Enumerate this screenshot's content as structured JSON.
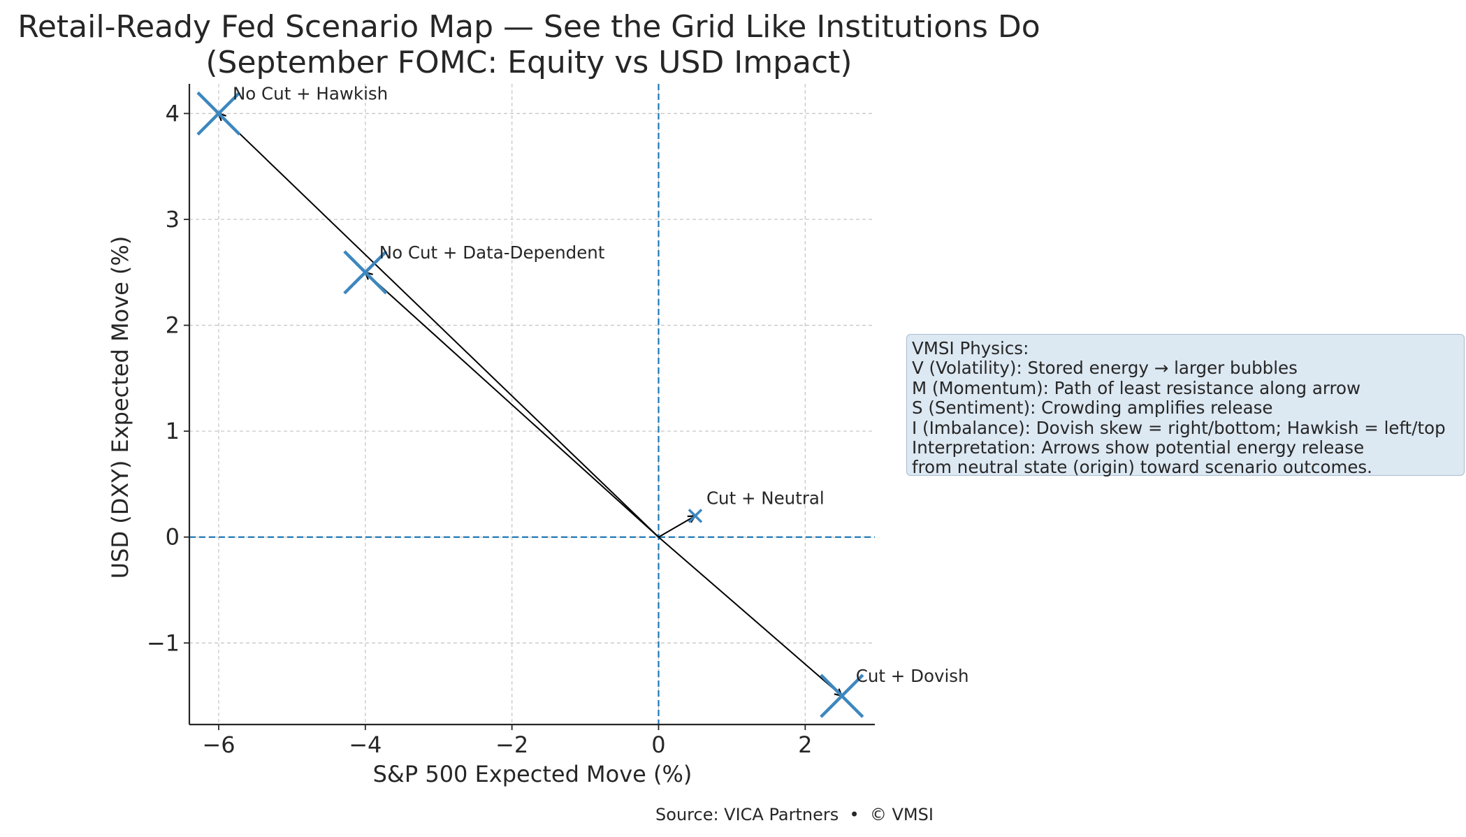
{
  "chart_data": {
    "type": "scatter",
    "title": [
      "Retail-Ready Fed Scenario Map — See the Grid Like Institutions Do",
      "(September FOMC: Equity vs USD Impact)"
    ],
    "xlabel": "S&P 500 Expected Move (%)",
    "ylabel": "USD (DXY) Expected Move (%)",
    "xlim": [
      -6.4,
      2.95
    ],
    "ylim": [
      -1.77,
      4.28
    ],
    "xticks": [
      -6,
      -4,
      -2,
      0,
      2
    ],
    "yticks": [
      -1,
      0,
      1,
      2,
      3,
      4
    ],
    "xtick_labels": [
      "−6",
      "−4",
      "−2",
      "0",
      "2"
    ],
    "ytick_labels": [
      "−1",
      "0",
      "1",
      "2",
      "3",
      "4"
    ],
    "grid": true,
    "reference_lines": {
      "x": 0,
      "y": 0,
      "style": "dashed",
      "color": "#1f77b4"
    },
    "arrow_origin": [
      0,
      0
    ],
    "points": [
      {
        "label": "No Cut + Hawkish",
        "x": -6.0,
        "y": 4.0,
        "size": "large"
      },
      {
        "label": "No Cut + Data-Dependent",
        "x": -4.0,
        "y": 2.5,
        "size": "large"
      },
      {
        "label": "Cut + Neutral",
        "x": 0.5,
        "y": 0.2,
        "size": "small"
      },
      {
        "label": "Cut + Dovish",
        "x": 2.5,
        "y": -1.5,
        "size": "large"
      }
    ],
    "annotation_box": [
      "VMSI Physics:",
      "V (Volatility): Stored energy → larger bubbles",
      "M (Momentum): Path of least resistance along arrow",
      "S (Sentiment): Crowding amplifies release",
      "I (Imbalance): Dovish skew = right/bottom; Hawkish = left/top",
      "Interpretation: Arrows show potential energy release",
      "from neutral state (origin) toward scenario outcomes."
    ],
    "source": "Source: VICA Partners  •  © VMSI"
  },
  "colors": {
    "marker": "#3d87bf",
    "reference_line": "#1f77b4",
    "grid": "#c8c8c8",
    "arrow": "#000000",
    "annotation_bg": "#dce8f2",
    "annotation_border": "#a9bdd1",
    "text": "#262626"
  }
}
